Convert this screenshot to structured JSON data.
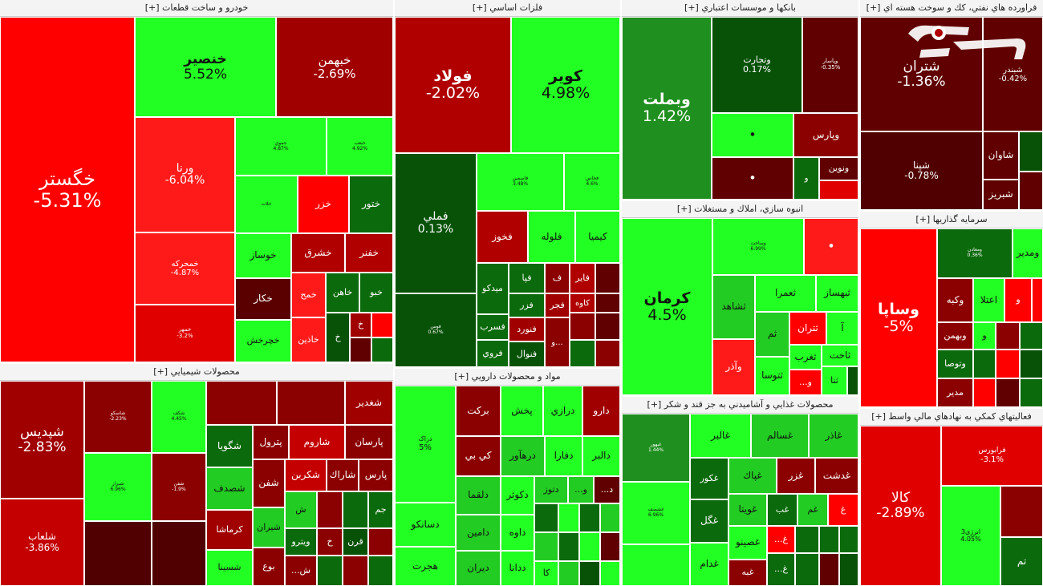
{
  "colors": {
    "strong_red": "#ff0000",
    "red": "#c40000",
    "dark_red": "#8b0000",
    "darker_red": "#600000",
    "bright_green": "#22ff22",
    "green": "#00cc00",
    "dark_green": "#0b6a0b",
    "darkest_green": "#085208"
  },
  "panels": {
    "auto": {
      "title": "خودرو و ساخت قطعات [+]",
      "tiles": [
        {
          "name": "خگستر",
          "pct": "-5.31%"
        },
        {
          "name": "خنصير",
          "pct": "5.52%"
        },
        {
          "name": "خبهمن",
          "pct": "-2.69%"
        },
        {
          "name": "ورنا",
          "pct": "-6.04%"
        },
        {
          "name": "جموي",
          "pct": "4.87%"
        },
        {
          "name": "خبعب",
          "pct": "4.92%"
        },
        {
          "name": "خمحركه",
          "pct": "-4.87%"
        },
        {
          "name": "خمهر",
          "pct": "-3.2%"
        },
        {
          "name": "خلات",
          "pct": ""
        },
        {
          "name": "خزر",
          "pct": ""
        },
        {
          "name": "ختور",
          "pct": ""
        },
        {
          "name": "خوساز",
          "pct": ""
        },
        {
          "name": "خشرق",
          "pct": ""
        },
        {
          "name": "خفنر",
          "pct": ""
        },
        {
          "name": "خكار",
          "pct": ""
        },
        {
          "name": "خمح",
          "pct": ""
        },
        {
          "name": "خاهن",
          "pct": ""
        },
        {
          "name": "خبو",
          "pct": ""
        },
        {
          "name": "خچرخش",
          "pct": ""
        },
        {
          "name": "خاذين",
          "pct": ""
        },
        {
          "name": "خ",
          "pct": ""
        },
        {
          "name": "خ",
          "pct": ""
        }
      ]
    },
    "metals": {
      "title": "فلزات اساسي [+]",
      "tiles": [
        {
          "name": "فولاد",
          "pct": "-2.02%"
        },
        {
          "name": "كوير",
          "pct": "4.98%"
        },
        {
          "name": "فملي",
          "pct": "0.13%"
        },
        {
          "name": "فاسمين",
          "pct": "3.48%"
        },
        {
          "name": "فخاس",
          "pct": "4.6%"
        },
        {
          "name": "فخوز",
          "pct": ""
        },
        {
          "name": "فلوله",
          "pct": ""
        },
        {
          "name": "كيميا",
          "pct": ""
        },
        {
          "name": "فوس",
          "pct": "0.67%"
        },
        {
          "name": "ميدكو",
          "pct": ""
        },
        {
          "name": "فپا",
          "pct": ""
        },
        {
          "name": "ف",
          "pct": ""
        },
        {
          "name": "فاير",
          "pct": ""
        },
        {
          "name": "فسرب",
          "pct": ""
        },
        {
          "name": "فجر",
          "pct": ""
        },
        {
          "name": "كاوه",
          "pct": ""
        },
        {
          "name": "فزر",
          "pct": ""
        },
        {
          "name": "فنورد",
          "pct": ""
        },
        {
          "name": "فروي",
          "pct": ""
        },
        {
          "name": "فنوال",
          "pct": ""
        },
        {
          "name": "و...",
          "pct": ""
        }
      ]
    },
    "banks": {
      "title": "بانكها و موسسات اعتباري [+]",
      "tiles": [
        {
          "name": "وبملت",
          "pct": "1.42%"
        },
        {
          "name": "وتجارت",
          "pct": "0.17%"
        },
        {
          "name": "وپاسار",
          "pct": "-0.35%"
        },
        {
          "name": "وپارس",
          "pct": ""
        },
        {
          "name": "ونوين",
          "pct": ""
        },
        {
          "name": "و",
          "pct": ""
        },
        {
          "name": "و",
          "pct": ""
        }
      ]
    },
    "oil": {
      "title": "فراورده هاي نفتي، كك و سوخت هسته اي [+]",
      "tiles": [
        {
          "name": "شتران",
          "pct": "-1.36%"
        },
        {
          "name": "شبندر",
          "pct": "-0.42%"
        },
        {
          "name": "شپنا",
          "pct": "-0.78%"
        },
        {
          "name": "شاوان",
          "pct": ""
        },
        {
          "name": "شبريز",
          "pct": ""
        }
      ]
    },
    "construction": {
      "title": "انبوه سازي، املاك و مستغلات [+]",
      "tiles": [
        {
          "name": "كرمان",
          "pct": "4.5%"
        },
        {
          "name": "وساخت",
          "pct": "6.99%"
        },
        {
          "name": "ثشاهد",
          "pct": ""
        },
        {
          "name": "ثعمرا",
          "pct": ""
        },
        {
          "name": "ثبهساز",
          "pct": ""
        },
        {
          "name": "ثم",
          "pct": ""
        },
        {
          "name": "ثتران",
          "pct": ""
        },
        {
          "name": "آ",
          "pct": ""
        },
        {
          "name": "وآذر",
          "pct": ""
        },
        {
          "name": "ثتوسا",
          "pct": ""
        },
        {
          "name": "ثغرب",
          "pct": ""
        },
        {
          "name": "ثاخت",
          "pct": ""
        },
        {
          "name": "ثنا",
          "pct": ""
        }
      ]
    },
    "investment": {
      "title": "سرمايه گذاريها [+]",
      "tiles": [
        {
          "name": "وساپا",
          "pct": "-5%"
        },
        {
          "name": "ومعادن",
          "pct": "0.36%"
        },
        {
          "name": "ومدير",
          "pct": ""
        },
        {
          "name": "وكبه",
          "pct": ""
        },
        {
          "name": "اعتلا",
          "pct": ""
        },
        {
          "name": "وبهمن",
          "pct": ""
        },
        {
          "name": "وتوصا",
          "pct": ""
        },
        {
          "name": "مدير",
          "pct": ""
        },
        {
          "name": "و",
          "pct": ""
        },
        {
          "name": "و",
          "pct": ""
        }
      ]
    },
    "chemical": {
      "title": "محصولات شيميايي [+]",
      "tiles": [
        {
          "name": "شپديس",
          "pct": "-2.83%"
        },
        {
          "name": "شلعاب",
          "pct": "-3.86%"
        },
        {
          "name": "شاسكو",
          "pct": "-2.23%"
        },
        {
          "name": "شكف",
          "pct": "4.45%"
        },
        {
          "name": "شيراز",
          "pct": "6.96%"
        },
        {
          "name": "شفن",
          "pct": "-1.9%"
        },
        {
          "name": "شغدير",
          "pct": ""
        },
        {
          "name": "شگويا",
          "pct": ""
        },
        {
          "name": "پترول",
          "pct": ""
        },
        {
          "name": "شاروم",
          "pct": ""
        },
        {
          "name": "پارسان",
          "pct": ""
        },
        {
          "name": "شصدف",
          "pct": ""
        },
        {
          "name": "شفن",
          "pct": ""
        },
        {
          "name": "شكربن",
          "pct": ""
        },
        {
          "name": "شاراك",
          "pct": ""
        },
        {
          "name": "پارس",
          "pct": ""
        },
        {
          "name": "كرماشا",
          "pct": ""
        },
        {
          "name": "شيران",
          "pct": ""
        },
        {
          "name": "ويترو",
          "pct": ""
        },
        {
          "name": "قرن",
          "pct": ""
        },
        {
          "name": "جم",
          "pct": ""
        },
        {
          "name": "شسينا",
          "pct": ""
        },
        {
          "name": "بوع",
          "pct": ""
        },
        {
          "name": "ش",
          "pct": ""
        },
        {
          "name": "خ",
          "pct": ""
        }
      ]
    },
    "pharma": {
      "title": "مواد و محصولات دارويي [+]",
      "tiles": [
        {
          "name": "دزاک",
          "pct": "5%"
        },
        {
          "name": "بركت",
          "pct": ""
        },
        {
          "name": "پخش",
          "pct": ""
        },
        {
          "name": "درازي",
          "pct": ""
        },
        {
          "name": "دارو",
          "pct": ""
        },
        {
          "name": "كي بي",
          "pct": ""
        },
        {
          "name": "درهآور",
          "pct": ""
        },
        {
          "name": "دفارا",
          "pct": ""
        },
        {
          "name": "دالبر",
          "pct": ""
        },
        {
          "name": "دلقما",
          "pct": ""
        },
        {
          "name": "دكوثر",
          "pct": ""
        },
        {
          "name": "دتوز",
          "pct": ""
        },
        {
          "name": "دسانكو",
          "pct": ""
        },
        {
          "name": "دامين",
          "pct": ""
        },
        {
          "name": "داوه",
          "pct": ""
        },
        {
          "name": "هجرت",
          "pct": ""
        },
        {
          "name": "ديران",
          "pct": ""
        },
        {
          "name": "ددانا",
          "pct": ""
        },
        {
          "name": "كا",
          "pct": ""
        }
      ]
    },
    "food": {
      "title": "محصولات غذايي و آشاميدني به جز قند و شكر [+]",
      "tiles": [
        {
          "name": "غبهور",
          "pct": "1.44%"
        },
        {
          "name": "غالبر",
          "pct": ""
        },
        {
          "name": "غسالم",
          "pct": ""
        },
        {
          "name": "غاذر",
          "pct": ""
        },
        {
          "name": "غشصف",
          "pct": "6.96%"
        },
        {
          "name": "غكور",
          "pct": ""
        },
        {
          "name": "غپاك",
          "pct": ""
        },
        {
          "name": "غزر",
          "pct": ""
        },
        {
          "name": "غدشت",
          "pct": ""
        },
        {
          "name": "غگل",
          "pct": ""
        },
        {
          "name": "غويتا",
          "pct": ""
        },
        {
          "name": "غب",
          "pct": ""
        },
        {
          "name": "غم",
          "pct": ""
        },
        {
          "name": "غدام",
          "pct": ""
        },
        {
          "name": "غصينو",
          "pct": ""
        },
        {
          "name": "غبه",
          "pct": ""
        },
        {
          "name": "غ",
          "pct": ""
        }
      ]
    },
    "aux": {
      "title": "فعاليتهاي كمكي به نهادهاي مالي واسط [+]",
      "tiles": [
        {
          "name": "كالا",
          "pct": "-2.89%"
        },
        {
          "name": "فرابورس",
          "pct": "-3.1%"
        },
        {
          "name": "انرژی3",
          "pct": "4.05%"
        },
        {
          "name": "تم",
          "pct": ""
        },
        {
          "name": "",
          "pct": ""
        }
      ]
    }
  }
}
